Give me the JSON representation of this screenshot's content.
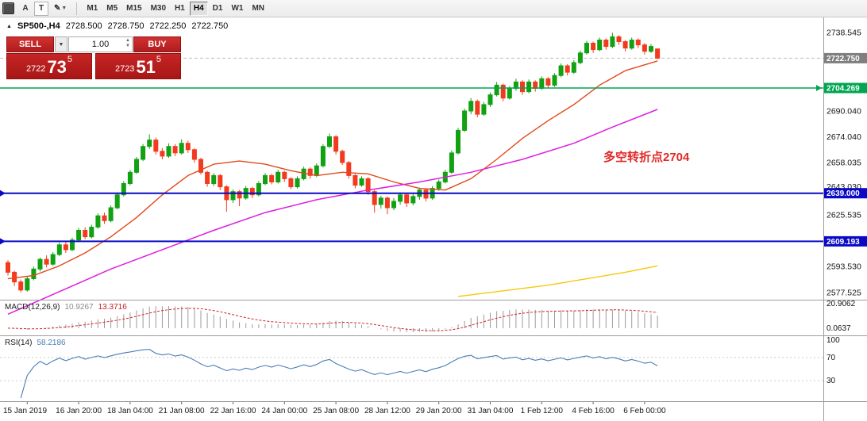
{
  "toolbar": {
    "cursor_label": "A",
    "text_label": "T",
    "timeframes": [
      {
        "label": "M1",
        "active": false
      },
      {
        "label": "M5",
        "active": false
      },
      {
        "label": "M15",
        "active": false
      },
      {
        "label": "M30",
        "active": false
      },
      {
        "label": "H1",
        "active": false
      },
      {
        "label": "H4",
        "active": true
      },
      {
        "label": "D1",
        "active": false
      },
      {
        "label": "W1",
        "active": false
      },
      {
        "label": "MN",
        "active": false
      }
    ]
  },
  "chart_header": {
    "symbol": "SP500-,H4",
    "open": "2728.500",
    "high": "2728.750",
    "low": "2722.250",
    "close": "2722.750"
  },
  "trade_panel": {
    "sell_label": "SELL",
    "buy_label": "BUY",
    "volume": "1.00",
    "sell_price": {
      "big": "2722",
      "large": "73",
      "sup": "5"
    },
    "buy_price": {
      "big": "2723",
      "large": "51",
      "sup": "5"
    }
  },
  "annotation": {
    "text": "多空转折点2704",
    "color": "#e02a2a"
  },
  "indicators": {
    "macd": {
      "name": "MACD(12,26,9)",
      "value_main": "10.9267",
      "value_signal": "13.3716",
      "axis": [
        {
          "label": "20.9062",
          "value": 20.9062
        },
        {
          "label": "0.0637",
          "value": 0.0637
        }
      ]
    },
    "rsi": {
      "name": "RSI(14)",
      "value": "58.2186",
      "color": "#4a7db5",
      "levels": [
        70,
        30
      ],
      "axis": [
        {
          "label": "100",
          "value": 100
        },
        {
          "label": "70",
          "value": 70
        },
        {
          "label": "30",
          "value": 30
        }
      ]
    }
  },
  "chart_data": {
    "type": "candlestick",
    "symbol": "SP500-",
    "timeframe": "H4",
    "price_range": [
      2573,
      2748
    ],
    "colors": {
      "up": "#11a113",
      "down": "#f23b1e",
      "hist": "#9b9b9b",
      "signal": "#d42323"
    },
    "current_price": {
      "value": 2722.75,
      "label": "2722.750",
      "box_color": "#7f7f7f"
    },
    "hlines": [
      {
        "price": 2704.269,
        "label": "2704.269",
        "color": "#00a651",
        "width": 1.6,
        "marker": "right"
      },
      {
        "price": 2639.0,
        "label": "2639.000",
        "color": "#0a0ac6",
        "width": 2,
        "marker": "left"
      },
      {
        "price": 2609.193,
        "label": "2609.193",
        "color": "#0a0ac6",
        "width": 2,
        "marker": "left"
      }
    ],
    "axis_ticks": [
      {
        "label": "2738.545",
        "price": 2738.545
      },
      {
        "label": "2690.040",
        "price": 2690.04
      },
      {
        "label": "2674.040",
        "price": 2674.04
      },
      {
        "label": "2658.035",
        "price": 2658.035
      },
      {
        "label": "2643.030",
        "price": 2643.03
      },
      {
        "label": "2625.535",
        "price": 2625.535
      },
      {
        "label": "2593.530",
        "price": 2593.53
      },
      {
        "label": "2577.525",
        "price": 2577.525
      }
    ],
    "time_labels": [
      {
        "i": 3,
        "label": "15 Jan 2019"
      },
      {
        "i": 11,
        "label": "16 Jan 20:00"
      },
      {
        "i": 19,
        "label": "18 Jan 04:00"
      },
      {
        "i": 27,
        "label": "21 Jan 08:00"
      },
      {
        "i": 35,
        "label": "22 Jan 16:00"
      },
      {
        "i": 43,
        "label": "24 Jan 00:00"
      },
      {
        "i": 51,
        "label": "25 Jan 08:00"
      },
      {
        "i": 59,
        "label": "28 Jan 12:00"
      },
      {
        "i": 67,
        "label": "29 Jan 20:00"
      },
      {
        "i": 75,
        "label": "31 Jan 04:00"
      },
      {
        "i": 83,
        "label": "1 Feb 12:00"
      },
      {
        "i": 91,
        "label": "4 Feb 16:00"
      },
      {
        "i": 99,
        "label": "6 Feb 00:00"
      }
    ],
    "ma_lines": [
      {
        "name": "ma-fast",
        "color": "#e2491b",
        "width": 1.4,
        "points": [
          [
            0,
            2586
          ],
          [
            4,
            2588
          ],
          [
            8,
            2594
          ],
          [
            12,
            2602
          ],
          [
            16,
            2612
          ],
          [
            20,
            2624
          ],
          [
            24,
            2638
          ],
          [
            28,
            2650
          ],
          [
            32,
            2657
          ],
          [
            36,
            2659
          ],
          [
            40,
            2657
          ],
          [
            44,
            2653
          ],
          [
            48,
            2650
          ],
          [
            52,
            2652
          ],
          [
            56,
            2651
          ],
          [
            60,
            2646
          ],
          [
            64,
            2642
          ],
          [
            68,
            2641
          ],
          [
            72,
            2648
          ],
          [
            76,
            2660
          ],
          [
            80,
            2673
          ],
          [
            84,
            2684
          ],
          [
            88,
            2694
          ],
          [
            92,
            2706
          ],
          [
            96,
            2715
          ],
          [
            101,
            2721
          ]
        ]
      },
      {
        "name": "ma-medium",
        "color": "#de1ede",
        "width": 1.5,
        "points": [
          [
            0,
            2564
          ],
          [
            8,
            2578
          ],
          [
            16,
            2592
          ],
          [
            24,
            2604
          ],
          [
            32,
            2616
          ],
          [
            40,
            2627
          ],
          [
            48,
            2635
          ],
          [
            56,
            2641
          ],
          [
            64,
            2646
          ],
          [
            72,
            2652
          ],
          [
            80,
            2660
          ],
          [
            88,
            2670
          ],
          [
            94,
            2680
          ],
          [
            101,
            2691
          ]
        ]
      },
      {
        "name": "ma-slow",
        "color": "#f6c80a",
        "width": 1.4,
        "points": [
          [
            70,
            2575
          ],
          [
            78,
            2579
          ],
          [
            84,
            2582
          ],
          [
            90,
            2586
          ],
          [
            96,
            2590
          ],
          [
            101,
            2594
          ]
        ]
      }
    ],
    "candles": [
      [
        2596,
        2597.5,
        2588,
        2590
      ],
      [
        2590,
        2591,
        2581.5,
        2584
      ],
      [
        2584,
        2585.5,
        2577.5,
        2579
      ],
      [
        2579,
        2587.5,
        2578,
        2586
      ],
      [
        2586,
        2593.5,
        2585,
        2592
      ],
      [
        2592,
        2599,
        2590.5,
        2598
      ],
      [
        2598,
        2600.5,
        2593,
        2595
      ],
      [
        2595,
        2602.5,
        2594,
        2601
      ],
      [
        2601,
        2608.5,
        2600,
        2607
      ],
      [
        2607,
        2609,
        2602,
        2604
      ],
      [
        2604,
        2611.5,
        2603,
        2610
      ],
      [
        2610,
        2617.5,
        2609,
        2616
      ],
      [
        2616,
        2618,
        2610.5,
        2612
      ],
      [
        2612,
        2619.5,
        2611,
        2618
      ],
      [
        2618,
        2626.5,
        2617,
        2625
      ],
      [
        2625,
        2627,
        2620,
        2622
      ],
      [
        2622,
        2631.5,
        2621,
        2630
      ],
      [
        2630,
        2639.5,
        2629,
        2638
      ],
      [
        2638,
        2646.5,
        2637,
        2645
      ],
      [
        2645,
        2653.5,
        2644,
        2652
      ],
      [
        2652,
        2661.5,
        2651,
        2660
      ],
      [
        2660,
        2669.5,
        2659,
        2668
      ],
      [
        2668,
        2675.5,
        2666.5,
        2672
      ],
      [
        2672,
        2673.5,
        2663,
        2665
      ],
      [
        2665,
        2667,
        2660,
        2662
      ],
      [
        2662,
        2670,
        2661,
        2668
      ],
      [
        2668,
        2669.5,
        2662,
        2664
      ],
      [
        2664,
        2672.5,
        2663,
        2670
      ],
      [
        2670,
        2671.5,
        2664,
        2666
      ],
      [
        2666,
        2667,
        2658,
        2660
      ],
      [
        2660,
        2661,
        2650.5,
        2652
      ],
      [
        2652,
        2653,
        2643,
        2645
      ],
      [
        2645,
        2651.5,
        2643.5,
        2650
      ],
      [
        2650,
        2651,
        2641,
        2643
      ],
      [
        2643,
        2644,
        2627.5,
        2635
      ],
      [
        2635,
        2641.5,
        2633,
        2640
      ],
      [
        2640,
        2641,
        2631,
        2636
      ],
      [
        2636,
        2643.5,
        2635,
        2642
      ],
      [
        2642,
        2643,
        2636,
        2638
      ],
      [
        2638,
        2646.5,
        2637,
        2645
      ],
      [
        2645,
        2651.5,
        2644,
        2650
      ],
      [
        2650,
        2651,
        2644.5,
        2646
      ],
      [
        2646,
        2653.5,
        2645,
        2652
      ],
      [
        2652,
        2653,
        2646,
        2648
      ],
      [
        2648,
        2649,
        2641.5,
        2643
      ],
      [
        2643,
        2649.5,
        2642,
        2648
      ],
      [
        2648,
        2655.5,
        2647,
        2654
      ],
      [
        2654,
        2655,
        2648,
        2650
      ],
      [
        2650,
        2657.5,
        2649,
        2656
      ],
      [
        2656,
        2669.5,
        2655,
        2668
      ],
      [
        2668,
        2676,
        2667,
        2674
      ],
      [
        2674,
        2675,
        2663,
        2665
      ],
      [
        2665,
        2666,
        2656.5,
        2658
      ],
      [
        2658,
        2659,
        2648,
        2650
      ],
      [
        2650,
        2651,
        2642,
        2644
      ],
      [
        2644,
        2649.5,
        2643,
        2648
      ],
      [
        2648,
        2649,
        2638,
        2640
      ],
      [
        2640,
        2641,
        2627,
        2632
      ],
      [
        2632,
        2637.5,
        2629.5,
        2636
      ],
      [
        2636,
        2637,
        2626,
        2630
      ],
      [
        2630,
        2636,
        2628.5,
        2634
      ],
      [
        2634,
        2639.5,
        2632,
        2638
      ],
      [
        2638,
        2639,
        2630.5,
        2633
      ],
      [
        2633,
        2638.5,
        2631.5,
        2637
      ],
      [
        2637,
        2642.5,
        2635,
        2641
      ],
      [
        2641,
        2642,
        2634,
        2636
      ],
      [
        2636,
        2643.5,
        2635,
        2642
      ],
      [
        2642,
        2647.5,
        2640.5,
        2646
      ],
      [
        2646,
        2653.5,
        2645,
        2652
      ],
      [
        2652,
        2665.5,
        2651,
        2664
      ],
      [
        2664,
        2679.5,
        2663,
        2678
      ],
      [
        2678,
        2691.5,
        2677,
        2690
      ],
      [
        2690,
        2698,
        2688,
        2696
      ],
      [
        2696,
        2697,
        2686,
        2688
      ],
      [
        2688,
        2695.5,
        2687,
        2694
      ],
      [
        2694,
        2701.5,
        2692.5,
        2700
      ],
      [
        2700,
        2708,
        2699,
        2706
      ],
      [
        2706,
        2707,
        2696,
        2698
      ],
      [
        2698,
        2705.5,
        2697,
        2704
      ],
      [
        2704,
        2710,
        2702.5,
        2708
      ],
      [
        2708,
        2709,
        2700,
        2702
      ],
      [
        2702,
        2709.5,
        2701,
        2708
      ],
      [
        2708,
        2709,
        2702,
        2704
      ],
      [
        2704,
        2711.5,
        2703,
        2710
      ],
      [
        2710,
        2711,
        2704,
        2706
      ],
      [
        2706,
        2713.5,
        2705,
        2712
      ],
      [
        2712,
        2719.5,
        2711,
        2718
      ],
      [
        2718,
        2719,
        2712,
        2714
      ],
      [
        2714,
        2721.5,
        2713,
        2720
      ],
      [
        2720,
        2727.5,
        2719,
        2726
      ],
      [
        2726,
        2733.5,
        2725,
        2732
      ],
      [
        2732,
        2733,
        2726,
        2728
      ],
      [
        2728,
        2735.5,
        2727,
        2734
      ],
      [
        2734,
        2735,
        2728,
        2730
      ],
      [
        2730,
        2738.5,
        2729,
        2736
      ],
      [
        2736,
        2737,
        2731,
        2733
      ],
      [
        2733,
        2734,
        2727,
        2729
      ],
      [
        2729,
        2735.5,
        2728,
        2734
      ],
      [
        2734,
        2735,
        2729,
        2731
      ],
      [
        2731,
        2732,
        2725,
        2727
      ],
      [
        2727,
        2731.5,
        2726,
        2730
      ],
      [
        2728.5,
        2728.75,
        2722.25,
        2722.75
      ]
    ]
  }
}
